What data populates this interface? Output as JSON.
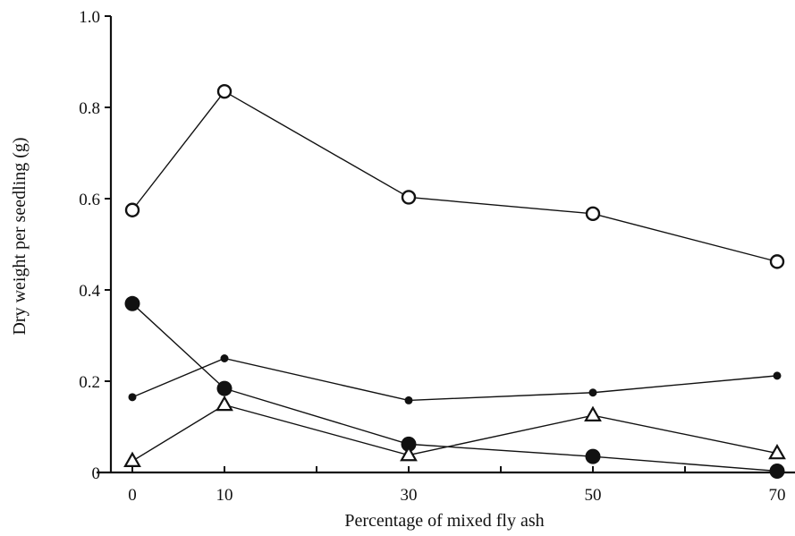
{
  "chart_data": {
    "type": "line",
    "xlabel": "Percentage of mixed fly ash",
    "ylabel": "Dry weight per seedling (g)",
    "xlim": [
      -3.5,
      71
    ],
    "ylim": [
      0,
      1.0
    ],
    "x_ticks": [
      0,
      10,
      30,
      50,
      70
    ],
    "x_ticks_minor": [
      20,
      40,
      60
    ],
    "y_ticks": [
      0,
      0.2,
      0.4,
      0.6,
      0.8,
      1.0
    ],
    "x_tick_labels": [
      "0",
      "10",
      "30",
      "50",
      "70"
    ],
    "y_tick_labels": [
      "0",
      "0.2",
      "0.4",
      "0.6",
      "0.8",
      "1.0"
    ],
    "grid": false,
    "series": [
      {
        "marker": "open-circle",
        "x": [
          0,
          10,
          30,
          50,
          70
        ],
        "y": [
          0.575,
          0.835,
          0.603,
          0.567,
          0.462
        ]
      },
      {
        "marker": "large-filled-circle",
        "x": [
          0,
          10,
          30,
          50,
          70
        ],
        "y": [
          0.37,
          0.184,
          0.062,
          0.035,
          0.003
        ]
      },
      {
        "marker": "small-filled-circle",
        "x": [
          0,
          10,
          30,
          50,
          70
        ],
        "y": [
          0.165,
          0.25,
          0.158,
          0.175,
          0.212
        ]
      },
      {
        "marker": "open-triangle",
        "x": [
          0,
          10,
          30,
          50,
          70
        ],
        "y": [
          0.025,
          0.148,
          0.038,
          0.125,
          0.042
        ]
      }
    ]
  }
}
